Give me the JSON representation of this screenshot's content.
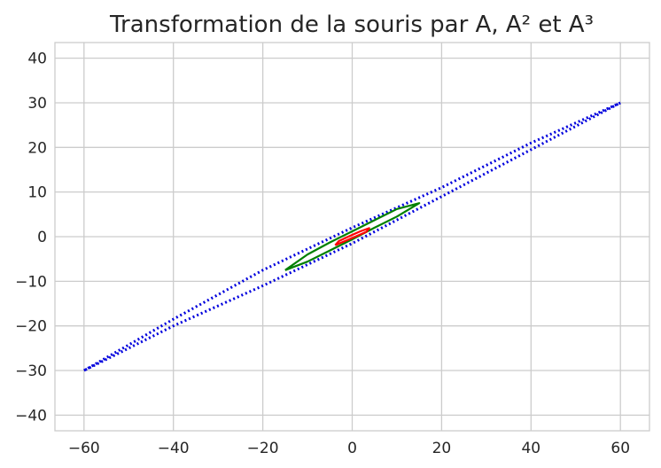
{
  "chart_data": {
    "type": "line",
    "title": "Transformation de la souris par A, A² et A³",
    "xlabel": "",
    "ylabel": "",
    "xlim": [
      -66.5,
      66.5
    ],
    "ylim": [
      -43.5,
      43.5
    ],
    "x_ticks": [
      -60,
      -40,
      -20,
      0,
      20,
      40,
      60
    ],
    "y_ticks": [
      -40,
      -30,
      -20,
      -10,
      0,
      10,
      20,
      30,
      40
    ],
    "x_tick_labels": [
      "−60",
      "−40",
      "−20",
      "0",
      "20",
      "40",
      "60"
    ],
    "y_tick_labels": [
      "−40",
      "−30",
      "−20",
      "−10",
      "0",
      "10",
      "20",
      "30",
      "40"
    ],
    "grid": true,
    "series": [
      {
        "color": "#ff0000",
        "style": "solid",
        "x": [
          -3.8,
          -3.0,
          -1.5,
          0.0,
          1.8,
          3.8,
          3.2,
          1.6,
          0.0,
          -1.6,
          -3.8
        ],
        "y": [
          -1.9,
          -1.0,
          -0.3,
          0.4,
          1.2,
          1.9,
          1.1,
          0.4,
          -0.3,
          -1.0,
          -1.9
        ]
      },
      {
        "color": "#008000",
        "style": "solid",
        "x": [
          -15.0,
          -10.0,
          -5.0,
          0.0,
          5.0,
          10.0,
          15.0,
          10.0,
          5.0,
          0.0,
          -5.0,
          -10.0,
          -15.0
        ],
        "y": [
          -7.5,
          -4.0,
          -1.3,
          1.2,
          3.7,
          6.2,
          7.5,
          4.5,
          2.0,
          -0.6,
          -3.1,
          -5.6,
          -7.5
        ]
      },
      {
        "color": "#0000dd",
        "style": "dotted",
        "x": [
          -60.0,
          -40.0,
          -20.0,
          0.0,
          20.0,
          40.0,
          60.0,
          40.0,
          20.0,
          0.0,
          -20.0,
          -40.0,
          -60.0
        ],
        "y": [
          -30.0,
          -18.5,
          -7.5,
          2.0,
          11.0,
          21.0,
          30.0,
          19.5,
          9.0,
          -1.5,
          -11.0,
          -20.0,
          -30.0
        ]
      }
    ]
  }
}
